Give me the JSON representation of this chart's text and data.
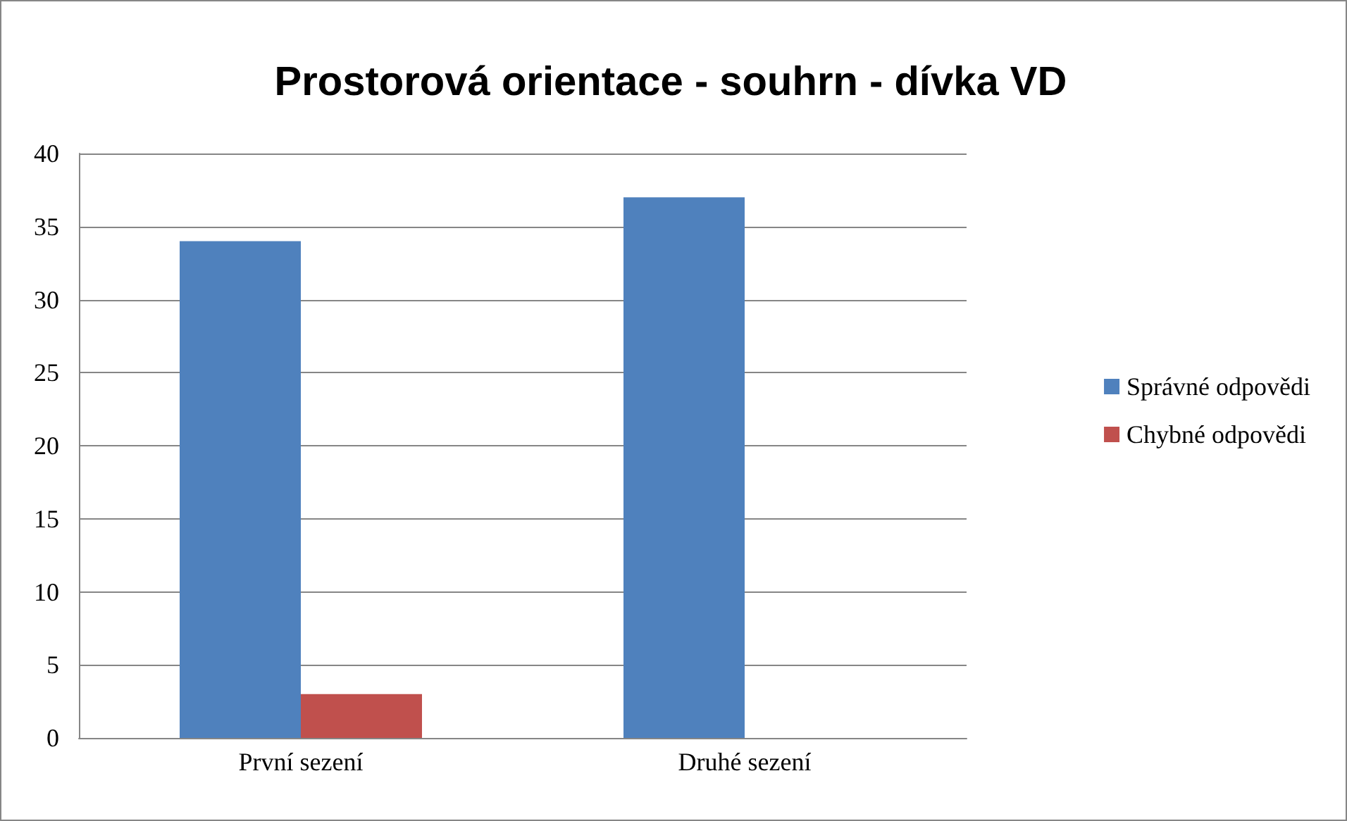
{
  "chart_data": {
    "type": "bar",
    "title": "Prostorová orientace - souhrn - dívka VD",
    "categories": [
      "První sezení",
      "Druhé sezení"
    ],
    "series": [
      {
        "name": "Správné odpovědi",
        "color": "#4f81bd",
        "values": [
          34,
          37
        ]
      },
      {
        "name": "Chybné odpovědi",
        "color": "#c0504d",
        "values": [
          3,
          0
        ]
      }
    ],
    "ylim": [
      0,
      40
    ],
    "yticks": [
      0,
      5,
      10,
      15,
      20,
      25,
      30,
      35,
      40
    ],
    "grid": "y",
    "legend": "right"
  }
}
